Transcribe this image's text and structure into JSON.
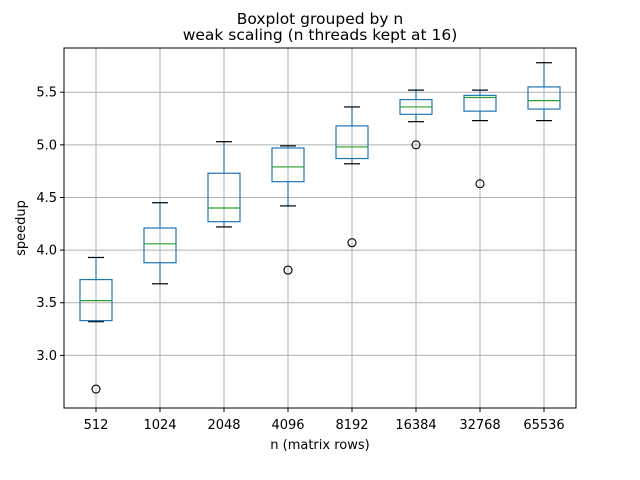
{
  "chart_data": {
    "type": "boxplot",
    "suptitle": "Boxplot grouped by n",
    "title": "weak scaling (n threads kept at 16)",
    "xlabel": "n (matrix rows)",
    "ylabel": "speedup",
    "categories": [
      "512",
      "1024",
      "2048",
      "4096",
      "8192",
      "16384",
      "32768",
      "65536"
    ],
    "ylim": [
      2.5,
      5.92
    ],
    "yticks": [
      "3.0",
      "3.5",
      "4.0",
      "4.5",
      "5.0",
      "5.5"
    ],
    "grid": true,
    "boxes": [
      {
        "whislo": 3.32,
        "q1": 3.33,
        "med": 3.52,
        "q3": 3.72,
        "whishi": 3.93,
        "fliers": [
          2.68
        ]
      },
      {
        "whislo": 3.68,
        "q1": 3.88,
        "med": 4.06,
        "q3": 4.21,
        "whishi": 4.45,
        "fliers": []
      },
      {
        "whislo": 4.22,
        "q1": 4.27,
        "med": 4.4,
        "q3": 4.73,
        "whishi": 5.03,
        "fliers": []
      },
      {
        "whislo": 4.42,
        "q1": 4.65,
        "med": 4.79,
        "q3": 4.97,
        "whishi": 4.99,
        "fliers": [
          3.81
        ]
      },
      {
        "whislo": 4.82,
        "q1": 4.87,
        "med": 4.98,
        "q3": 5.18,
        "whishi": 5.36,
        "fliers": [
          4.07
        ]
      },
      {
        "whislo": 5.22,
        "q1": 5.29,
        "med": 5.36,
        "q3": 5.43,
        "whishi": 5.52,
        "fliers": [
          5.0
        ]
      },
      {
        "whislo": 5.23,
        "q1": 5.32,
        "med": 5.45,
        "q3": 5.47,
        "whishi": 5.52,
        "fliers": [
          4.63
        ]
      },
      {
        "whislo": 5.23,
        "q1": 5.34,
        "med": 5.42,
        "q3": 5.55,
        "whishi": 5.78,
        "fliers": []
      }
    ]
  }
}
